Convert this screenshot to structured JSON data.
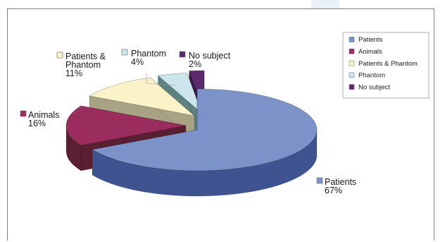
{
  "chart_data": {
    "type": "pie",
    "title": "",
    "categories": [
      "Patients",
      "Animals",
      "Patients & Phantom",
      "Phantom",
      "No subject"
    ],
    "values": [
      67,
      16,
      11,
      4,
      2
    ],
    "unit": "%",
    "data_labels": [
      {
        "name_lines": [
          "Patients"
        ],
        "pct": "67%"
      },
      {
        "name_lines": [
          "Animals"
        ],
        "pct": "16%"
      },
      {
        "name_lines": [
          "Patients &",
          "Phantom"
        ],
        "pct": "11%"
      },
      {
        "name_lines": [
          "Phantom"
        ],
        "pct": "4%"
      },
      {
        "name_lines": [
          "No subject"
        ],
        "pct": "2%"
      }
    ],
    "colors": [
      "#7b93c9",
      "#9b2d5e",
      "#fbf3c8",
      "#cde6ee",
      "#5b2a6e"
    ],
    "side_colors": [
      "#3f5390",
      "#5a1f33",
      "#a8a385",
      "#5e8281",
      "#3a1948"
    ],
    "legend": {
      "placement": "right",
      "entries": [
        "Patients",
        "Animals",
        "Patients & Phantom",
        "Phantom",
        "No subject"
      ]
    },
    "style": "3d-exploded"
  }
}
